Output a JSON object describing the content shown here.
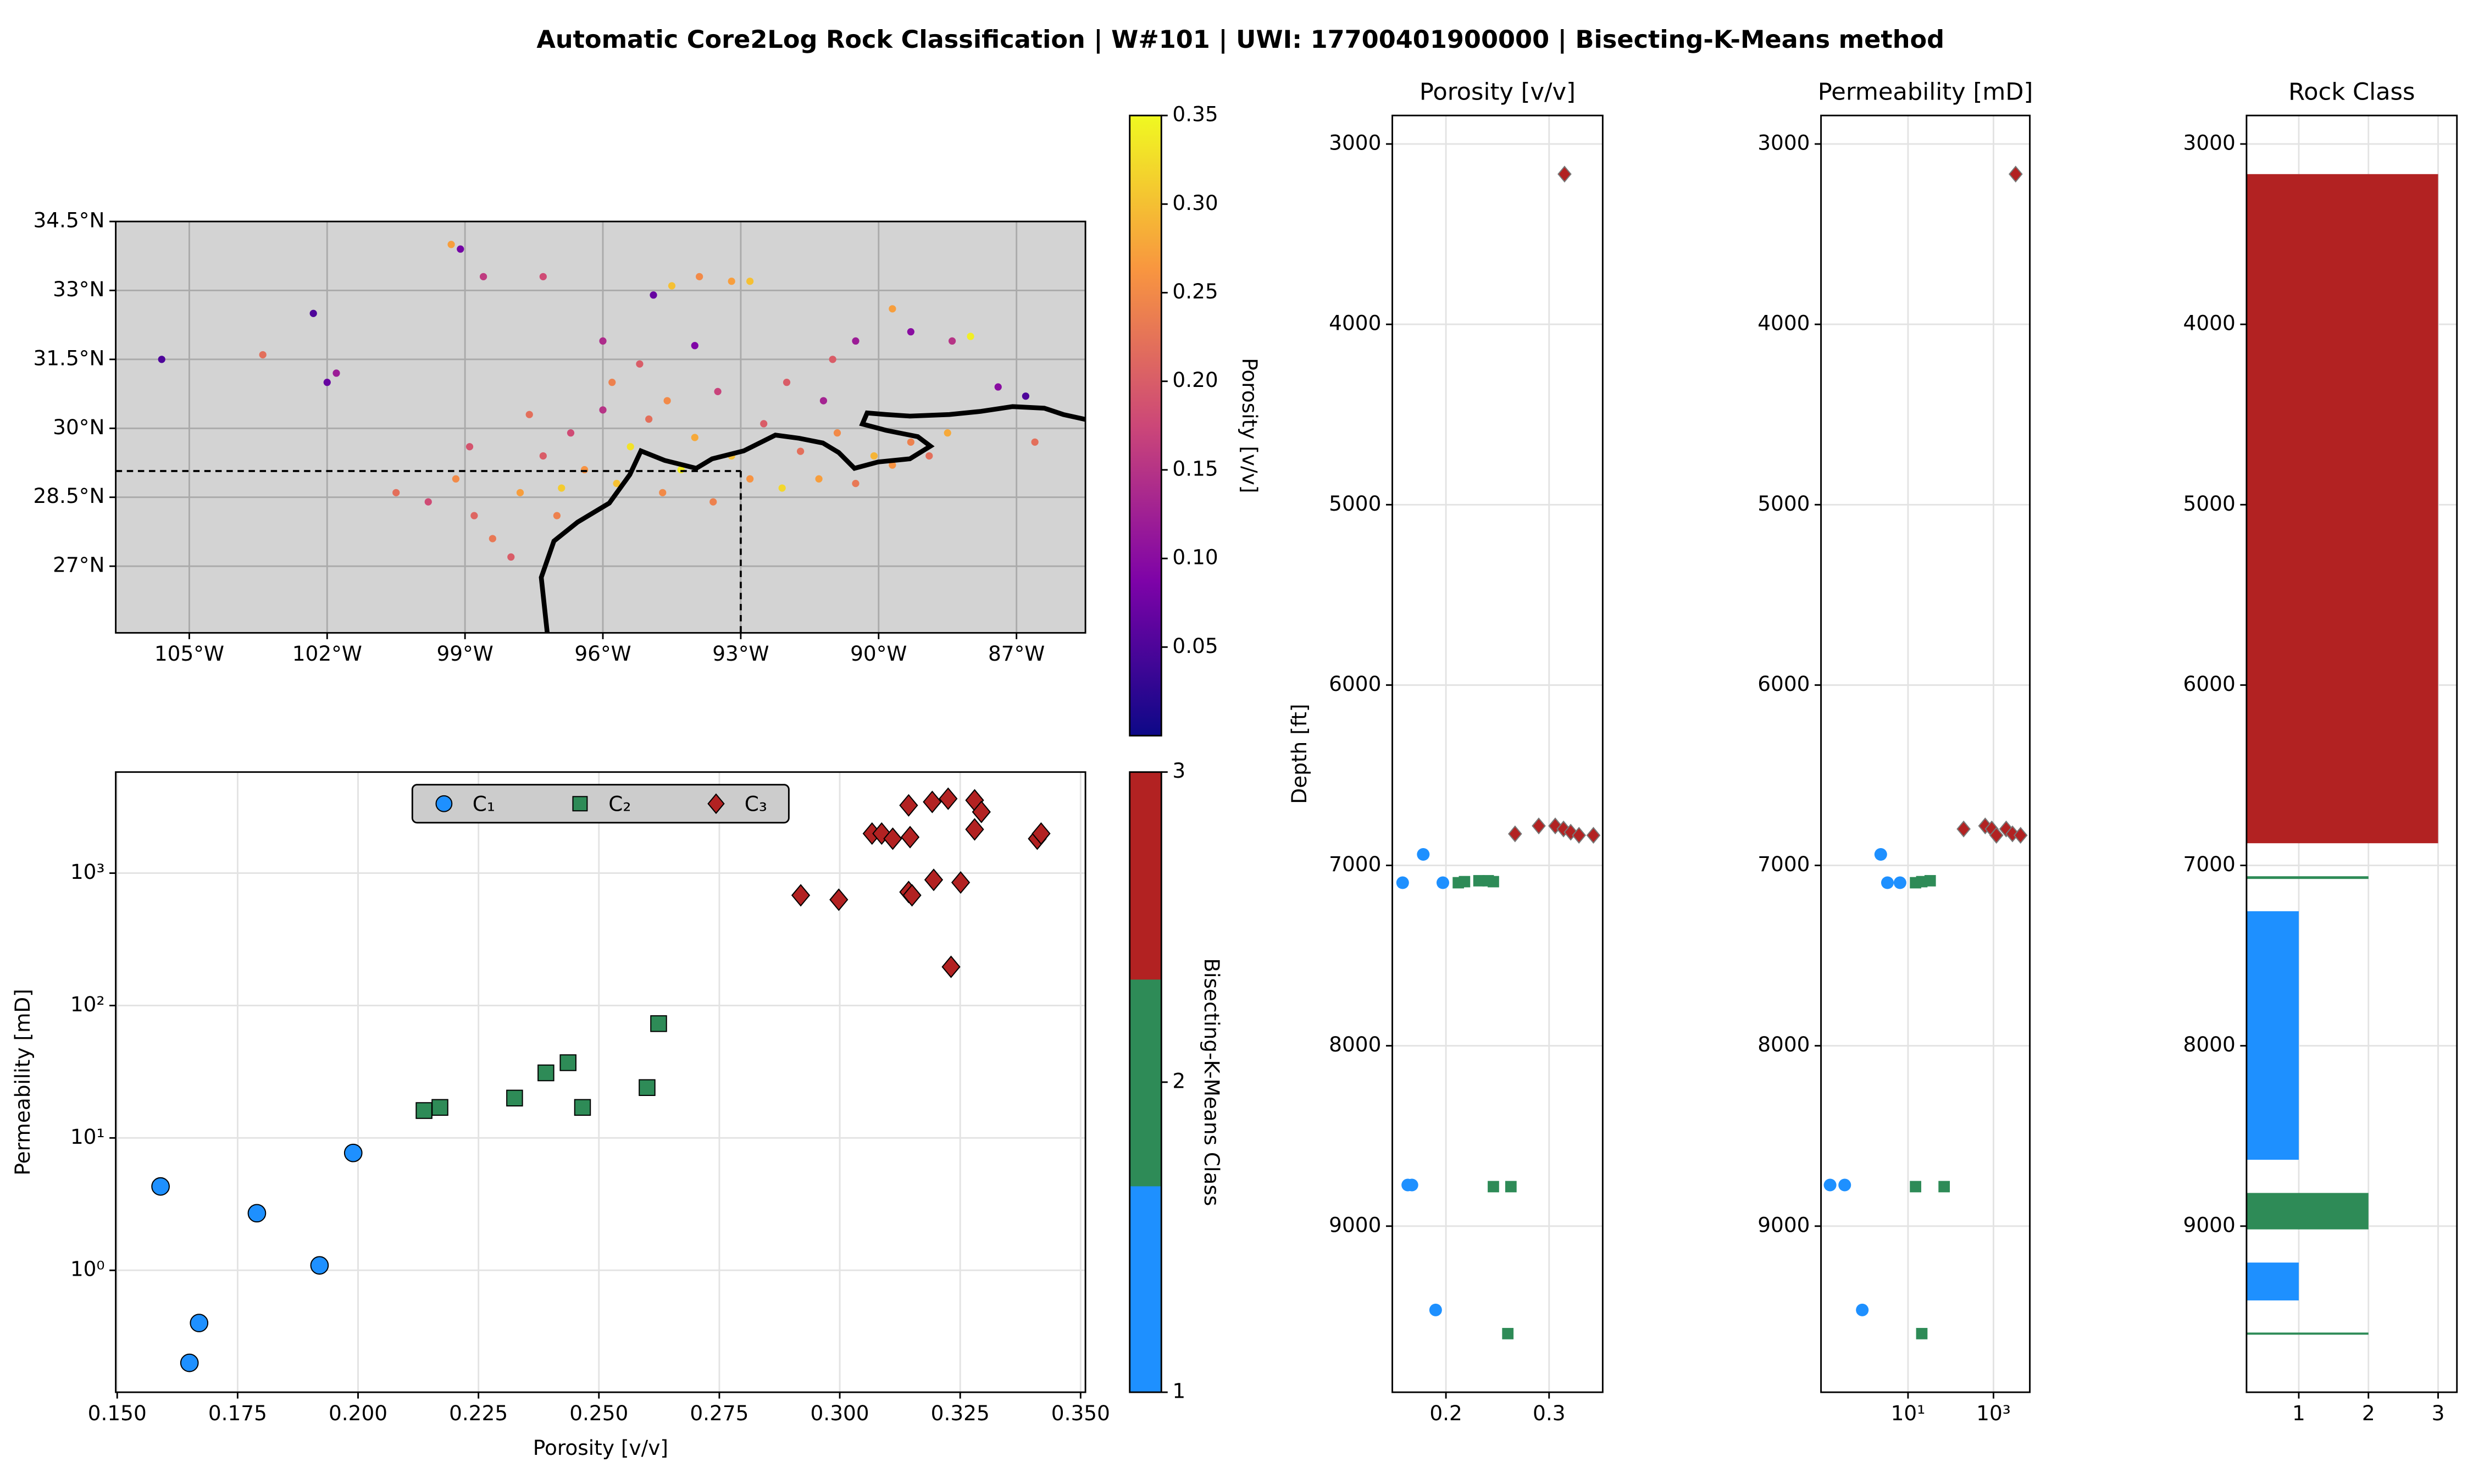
{
  "title": "Automatic Core2Log Rock Classification | W#101 | UWI: 17700401900000 | Bisecting-K-Means method",
  "chart_data": [
    {
      "type": "map",
      "xlim": [
        -106.6,
        -85.5
      ],
      "ylim": [
        25.55,
        34.5
      ],
      "xticks": [
        {
          "value": -105,
          "label": "105°W"
        },
        {
          "value": -102,
          "label": "102°W"
        },
        {
          "value": -99,
          "label": "99°W"
        },
        {
          "value": -96,
          "label": "96°W"
        },
        {
          "value": -93,
          "label": "93°W"
        },
        {
          "value": -90,
          "label": "90°W"
        },
        {
          "value": -87,
          "label": "87°W"
        }
      ],
      "yticks": [
        {
          "value": 27,
          "label": "27°N"
        },
        {
          "value": 28.5,
          "label": "28.5°N"
        },
        {
          "value": 30,
          "label": "30°N"
        },
        {
          "value": 31.5,
          "label": "31.5°N"
        },
        {
          "value": 33,
          "label": "33°N"
        },
        {
          "value": 34.5,
          "label": "34.5°N"
        }
      ],
      "grid": true,
      "well": {
        "lon": -93,
        "lat": 29.07
      },
      "series": [
        {
          "marker": "circle",
          "x": [
            -105.6,
            -103.4,
            -102.3,
            -102,
            -101.8,
            -99.3,
            -99.1,
            -98.6,
            -97.3,
            -94.9,
            -94.5,
            -93.9,
            -93.2,
            -92.8,
            -89.7,
            -88.4,
            -88,
            -87.4,
            -86.8,
            -86.6,
            -94,
            -91,
            -90.5,
            -96,
            -95.2,
            -89.3,
            -100.5,
            -99.8,
            -99.2,
            -98.8,
            -98.4,
            -98,
            -97.8,
            -97.3,
            -97,
            -96.7,
            -96.4,
            -96,
            -95.7,
            -95.4,
            -95,
            -94.7,
            -94.3,
            -94,
            -93.6,
            -93.2,
            -92.8,
            -92.5,
            -92.1,
            -91.7,
            -91.3,
            -90.9,
            -90.5,
            -90.1,
            -89.7,
            -89.3,
            -88.9,
            -88.5,
            -95.8,
            -93.5,
            -97.6,
            -98.9,
            -94.6,
            -92,
            -91.2,
            -96.9
          ],
          "values": [
            31.5,
            31.6,
            32.5,
            31,
            31.2,
            34,
            33.9,
            33.3,
            33.3,
            32.9,
            33.1,
            33.3,
            33.2,
            33.2,
            32.6,
            31.9,
            32,
            30.9,
            30.7,
            29.7,
            31.8,
            31.5,
            31.9,
            31.9,
            31.4,
            32.1,
            28.6,
            28.4,
            28.9,
            28.1,
            27.6,
            27.2,
            28.6,
            29.4,
            28.1,
            29.9,
            29.1,
            30.4,
            28.8,
            29.6,
            30.2,
            28.6,
            29.1,
            29.8,
            28.4,
            29.4,
            28.9,
            30.1,
            28.7,
            29.5,
            28.9,
            29.9,
            28.8,
            29.4,
            29.2,
            29.7,
            29.4,
            29.9,
            31,
            30.8,
            30.3,
            29.6,
            30.6,
            31,
            30.6,
            28.7
          ],
          "c": [
            0.05,
            0.22,
            0.05,
            0.07,
            0.12,
            0.27,
            0.08,
            0.16,
            0.18,
            0.07,
            0.3,
            0.25,
            0.27,
            0.3,
            0.27,
            0.15,
            0.34,
            0.1,
            0.05,
            0.22,
            0.09,
            0.2,
            0.12,
            0.14,
            0.2,
            0.1,
            0.22,
            0.18,
            0.25,
            0.21,
            0.23,
            0.2,
            0.27,
            0.2,
            0.24,
            0.18,
            0.26,
            0.15,
            0.3,
            0.33,
            0.22,
            0.25,
            0.34,
            0.28,
            0.24,
            0.3,
            0.26,
            0.2,
            0.32,
            0.22,
            0.27,
            0.25,
            0.23,
            0.29,
            0.26,
            0.24,
            0.22,
            0.28,
            0.24,
            0.17,
            0.22,
            0.19,
            0.25,
            0.2,
            0.13,
            0.31
          ]
        }
      ],
      "colorbar": {
        "label": "Porosity [v/v]",
        "colormap": "plasma",
        "lim": [
          0,
          0.35
        ],
        "ticks": [
          0.05,
          {
            "value": 0.1,
            "label": "0.10"
          },
          0.15,
          {
            "value": 0.2,
            "label": "0.20"
          },
          0.25,
          {
            "value": 0.3,
            "label": "0.30"
          },
          0.35
        ]
      }
    },
    {
      "type": "scatter",
      "xlabel": "Porosity [v/v]",
      "ylabel": "Permeability [mD]",
      "xlim": [
        0.1497,
        0.351
      ],
      "ylim": [
        0.12,
        5800
      ],
      "yscale": "log",
      "xticks": [
        {
          "value": 0.15,
          "label": "0.150"
        },
        {
          "value": 0.175,
          "label": "0.175"
        },
        {
          "value": 0.2,
          "label": "0.200"
        },
        {
          "value": 0.225,
          "label": "0.225"
        },
        {
          "value": 0.25,
          "label": "0.250"
        },
        {
          "value": 0.275,
          "label": "0.275"
        },
        {
          "value": 0.3,
          "label": "0.300"
        },
        {
          "value": 0.325,
          "label": "0.325"
        },
        {
          "value": 0.35,
          "label": "0.350"
        }
      ],
      "yticks": [
        {
          "value": 1,
          "label": "10⁰"
        },
        {
          "value": 10,
          "label": "10¹"
        },
        {
          "value": 100,
          "label": "10²"
        },
        {
          "value": 1000,
          "label": "10³"
        }
      ],
      "grid": true,
      "legend": "upper center",
      "series": [
        {
          "name": "C₁",
          "color": "#1e90ff",
          "marker": "circle",
          "x": [
            0.159,
            0.165,
            0.167,
            0.179,
            0.192,
            0.199
          ],
          "values": [
            4.3,
            0.2,
            0.4,
            2.7,
            1.09,
            7.7
          ]
        },
        {
          "name": "C₂",
          "color": "#2e8b57",
          "marker": "square",
          "x": [
            0.2137,
            0.217,
            0.2325,
            0.239,
            0.2436,
            0.2466,
            0.26,
            0.2624
          ],
          "values": [
            16.1,
            17,
            20,
            31,
            37,
            17,
            24,
            73
          ]
        },
        {
          "name": "C₃",
          "color": "#b22222",
          "marker": "diamond",
          "x": [
            0.2919,
            0.2998,
            0.3067,
            0.3087,
            0.311,
            0.3143,
            0.3146,
            0.3143,
            0.315,
            0.3192,
            0.3195,
            0.3225,
            0.3231,
            0.3251,
            0.328,
            0.328,
            0.3294,
            0.341,
            0.3418
          ],
          "values": [
            680,
            630,
            1990,
            1990,
            1820,
            3250,
            1870,
            720,
            680,
            3450,
            890,
            3650,
            196,
            850,
            3550,
            2140,
            2900,
            1820,
            1990
          ]
        }
      ],
      "colorbar": {
        "label": "Bisecting-K-Means Class",
        "lim": [
          1,
          3
        ],
        "ticks": [
          1,
          2,
          3
        ],
        "colors": [
          "#1e90ff",
          "#2e8b57",
          "#b22222"
        ]
      }
    },
    {
      "type": "scatter",
      "title": "Porosity [v/v]",
      "ylabel": "Depth [ft]",
      "xlim": [
        0.148,
        0.352
      ],
      "ylim": [
        9921,
        2842
      ],
      "xticks": [
        0.2,
        0.3
      ],
      "yticks": [
        3000,
        4000,
        5000,
        6000,
        7000,
        8000,
        9000
      ],
      "grid": true,
      "series": [
        {
          "color": "#1e90ff",
          "marker": "circle",
          "x": [
            0.158,
            0.178,
            0.197,
            0.163,
            0.167,
            0.19
          ],
          "values": [
            7096,
            6939,
            7096,
            8772,
            8772,
            9465
          ]
        },
        {
          "color": "#2e8b57",
          "marker": "square",
          "x": [
            0.212,
            0.218,
            0.232,
            0.241,
            0.246,
            0.246,
            0.263,
            0.26
          ],
          "values": [
            7096,
            7090,
            7085,
            7085,
            7090,
            8781,
            8781,
            9596
          ]
        },
        {
          "color": "#b22222",
          "marker": "diamond",
          "x": [
            0.315,
            0.267,
            0.29,
            0.306,
            0.314,
            0.321,
            0.329,
            0.343
          ],
          "values": [
            3167,
            6825,
            6781,
            6781,
            6798,
            6816,
            6833,
            6833
          ]
        }
      ]
    },
    {
      "type": "scatter",
      "title": "Permeability [mD]",
      "xlim": [
        0.092,
        7080
      ],
      "xscale": "log",
      "ylim": [
        9921,
        2842
      ],
      "xticks": [
        {
          "value": 10,
          "label": "10¹"
        },
        {
          "value": 1000,
          "label": "10³"
        }
      ],
      "yticks": [
        3000,
        4000,
        5000,
        6000,
        7000,
        8000,
        9000
      ],
      "grid": true,
      "series": [
        {
          "color": "#1e90ff",
          "marker": "circle",
          "x": [
            2.3,
            3.3,
            6.5,
            0.15,
            0.33,
            0.85
          ],
          "values": [
            6939,
            7096,
            7096,
            8772,
            8772,
            9465
          ]
        },
        {
          "color": "#2e8b57",
          "marker": "square",
          "x": [
            15,
            21,
            33,
            15,
            70,
            21
          ],
          "values": [
            7096,
            7090,
            7085,
            8781,
            8781,
            9596
          ]
        },
        {
          "color": "#b22222",
          "marker": "diamond",
          "x": [
            3300,
            200,
            640,
            910,
            1170,
            1980,
            2780,
            4300
          ],
          "values": [
            3167,
            6798,
            6781,
            6798,
            6833,
            6798,
            6825,
            6833
          ]
        }
      ]
    },
    {
      "type": "bar",
      "title": "Rock Class",
      "xlim": [
        0.25,
        3.27
      ],
      "ylim": [
        9921,
        2842
      ],
      "xticks": [
        1,
        2,
        3
      ],
      "yticks": [
        3000,
        4000,
        5000,
        6000,
        7000,
        8000,
        9000
      ],
      "grid": true,
      "colors": [
        "#1e90ff",
        "#2e8b57",
        "#b22222"
      ],
      "top": [
        3167,
        7060,
        7254,
        8816,
        9202,
        9590
      ],
      "base": [
        6877,
        7075,
        8632,
        9018,
        9412,
        9602
      ],
      "values": [
        3,
        2,
        1,
        2,
        1,
        2
      ]
    }
  ]
}
